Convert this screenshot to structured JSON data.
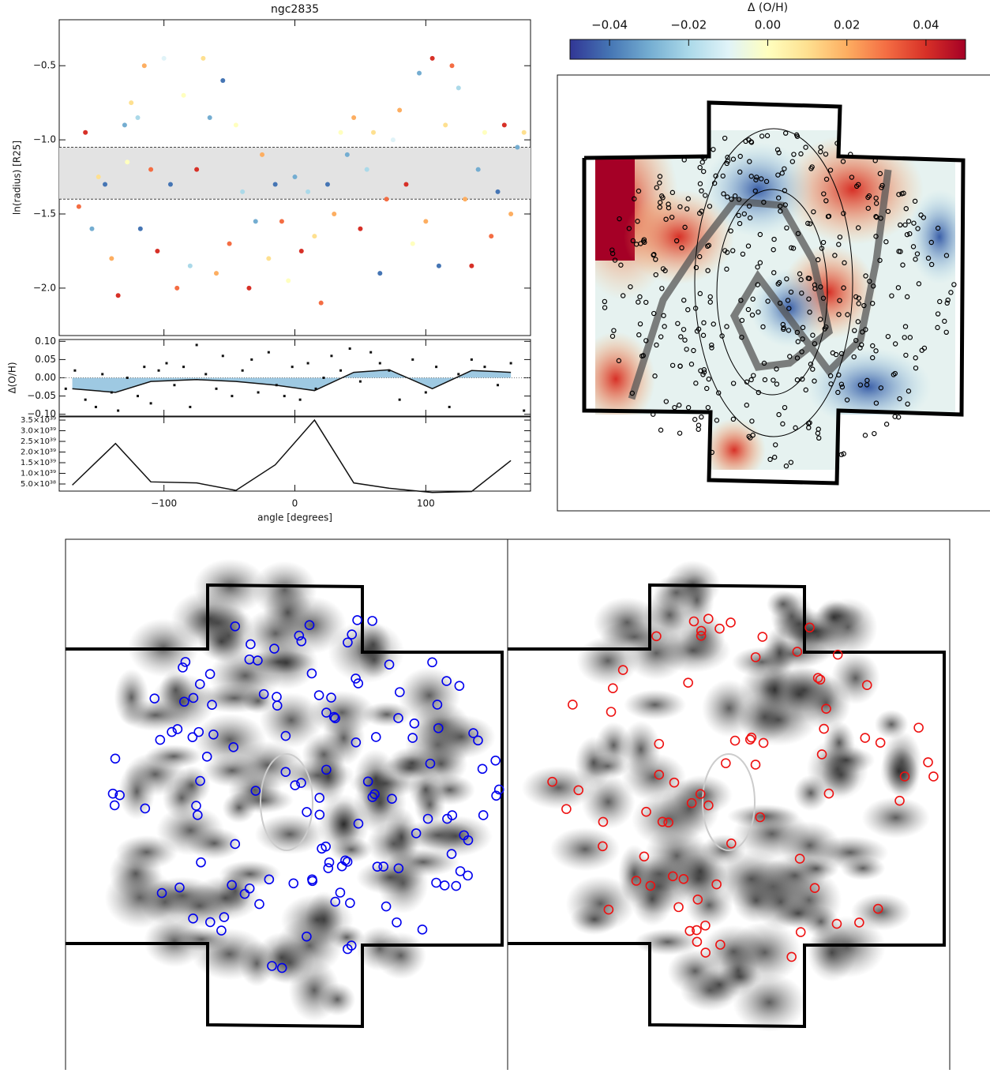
{
  "chart_data": [
    {
      "type": "scatter",
      "title": "ngc2835",
      "y_label": "ln(radius) [R25]",
      "xlim": [
        -180,
        180
      ],
      "ylim": [
        -2.32,
        -0.19
      ],
      "yticks": [
        {
          "value": -2.0,
          "label": "−2.0"
        },
        {
          "value": -1.5,
          "label": "−1.5"
        },
        {
          "value": -1.0,
          "label": "−1.0"
        },
        {
          "value": -0.5,
          "label": "−0.5"
        }
      ],
      "band": [
        -1.4,
        -1.05
      ],
      "band_color": "#e3e3e3",
      "x": [
        -165,
        -160,
        -155,
        -150,
        -145,
        -140,
        -135,
        -130,
        -128,
        -125,
        -120,
        -118,
        -115,
        -110,
        -105,
        -100,
        -95,
        -90,
        -85,
        -80,
        -75,
        -70,
        -65,
        -60,
        -55,
        -50,
        -45,
        -40,
        -35,
        -30,
        -25,
        -20,
        -15,
        -10,
        -5,
        0,
        5,
        10,
        15,
        20,
        25,
        30,
        35,
        40,
        45,
        50,
        55,
        60,
        65,
        70,
        75,
        80,
        85,
        90,
        95,
        100,
        105,
        110,
        115,
        120,
        125,
        130,
        135,
        140,
        145,
        150,
        155,
        160,
        165,
        170,
        175
      ],
      "y": [
        -1.45,
        -0.95,
        -1.6,
        -1.25,
        -1.3,
        -1.8,
        -2.05,
        -0.9,
        -1.15,
        -0.75,
        -0.85,
        -1.6,
        -0.5,
        -1.2,
        -1.75,
        -0.45,
        -1.3,
        -2.0,
        -0.7,
        -1.85,
        -1.2,
        -0.45,
        -0.85,
        -1.9,
        -0.6,
        -1.7,
        -0.9,
        -1.35,
        -2.0,
        -1.55,
        -1.1,
        -1.8,
        -1.3,
        -1.55,
        -1.95,
        -1.25,
        -1.75,
        -1.35,
        -1.65,
        -2.1,
        -1.3,
        -1.5,
        -0.95,
        -1.1,
        -0.85,
        -1.6,
        -1.2,
        -0.95,
        -1.9,
        -1.4,
        -1.0,
        -0.8,
        -1.3,
        -1.7,
        -0.55,
        -1.55,
        -0.45,
        -1.85,
        -0.9,
        -0.5,
        -0.65,
        -1.4,
        -1.85,
        -1.2,
        -0.95,
        -1.65,
        -1.35,
        -0.9,
        -1.5,
        -1.05,
        -0.95
      ],
      "z": [
        0.03,
        0.04,
        -0.03,
        0.01,
        -0.04,
        0.02,
        0.04,
        -0.03,
        0.0,
        0.01,
        -0.02,
        -0.04,
        0.02,
        0.03,
        0.04,
        -0.01,
        -0.04,
        0.03,
        0.0,
        -0.02,
        0.04,
        0.01,
        -0.03,
        0.02,
        -0.04,
        0.03,
        0.0,
        -0.02,
        0.04,
        -0.03,
        0.02,
        0.01,
        -0.04,
        0.03,
        0.0,
        -0.03,
        0.04,
        -0.02,
        0.01,
        0.03,
        -0.04,
        0.02,
        0.0,
        -0.03,
        0.02,
        0.04,
        -0.02,
        0.01,
        -0.04,
        0.03,
        -0.01,
        0.02,
        0.04,
        0.0,
        -0.03,
        0.02,
        0.04,
        -0.04,
        0.01,
        0.03,
        -0.02,
        0.02,
        0.04,
        -0.03,
        0.0,
        0.03,
        -0.04,
        0.04,
        0.02,
        -0.03,
        0.01
      ]
    },
    {
      "type": "scatter",
      "y_label": "Δ(O/H)",
      "xlim": [
        -180,
        180
      ],
      "ylim": [
        -0.105,
        0.105
      ],
      "yticks": [
        {
          "value": -0.1,
          "label": "−0.10"
        },
        {
          "value": -0.05,
          "label": "−0.05"
        },
        {
          "value": 0,
          "label": "0.00"
        },
        {
          "value": 0.05,
          "label": "0.05"
        },
        {
          "value": 0.1,
          "label": "0.10"
        }
      ],
      "color": "#111111",
      "fill_color": "#9ec9e2",
      "x": [
        -175,
        -168,
        -160,
        -152,
        -147,
        -140,
        -135,
        -128,
        -120,
        -115,
        -110,
        -104,
        -98,
        -92,
        -85,
        -80,
        -75,
        -68,
        -60,
        -55,
        -48,
        -40,
        -33,
        -28,
        -20,
        -14,
        -8,
        -2,
        4,
        10,
        16,
        22,
        28,
        35,
        42,
        50,
        58,
        65,
        72,
        80,
        90,
        100,
        108,
        118,
        125,
        135,
        145,
        155,
        165,
        175
      ],
      "y": [
        -0.03,
        0.02,
        -0.06,
        -0.08,
        0.01,
        -0.04,
        -0.09,
        0.0,
        -0.05,
        0.03,
        -0.07,
        0.02,
        0.04,
        -0.02,
        0.03,
        -0.08,
        0.09,
        0.01,
        -0.03,
        0.06,
        -0.05,
        0.02,
        0.05,
        -0.04,
        0.07,
        -0.02,
        -0.05,
        0.03,
        -0.06,
        0.04,
        -0.03,
        0.0,
        0.06,
        0.02,
        0.08,
        -0.01,
        0.07,
        0.04,
        0.02,
        -0.06,
        0.05,
        -0.04,
        0.03,
        -0.08,
        0.01,
        0.05,
        0.03,
        -0.02,
        0.04,
        -0.09
      ],
      "trend_x": [
        -170,
        -137,
        -110,
        -75,
        -45,
        -15,
        15,
        45,
        72,
        105,
        135,
        165
      ],
      "trend_y": [
        -0.03,
        -0.04,
        -0.01,
        -0.005,
        -0.01,
        -0.02,
        -0.035,
        0.015,
        0.022,
        -0.03,
        0.02,
        0.015
      ]
    },
    {
      "type": "line",
      "x_label": "angle [degrees]",
      "xlim": [
        -180,
        180
      ],
      "ylim": [
        1.67e+38,
        3.65e+39
      ],
      "xticks": [
        {
          "value": -100,
          "label": "−100"
        },
        0,
        100
      ],
      "yticks": [
        {
          "value": 5e+38,
          "label": "5.0×10³⁸"
        },
        {
          "value": 1e+39,
          "label": "1.0×10³⁹"
        },
        {
          "value": 1.5e+39,
          "label": "1.5×10³⁹"
        },
        {
          "value": 2e+39,
          "label": "2.0×10³⁹"
        },
        {
          "value": 2.5e+39,
          "label": "2.5×10³⁹"
        },
        {
          "value": 3e+39,
          "label": "3.0×10³⁹"
        },
        {
          "value": 3.5e+39,
          "label": "3.5×10³⁹"
        }
      ],
      "color": "#111111",
      "x": [
        -170,
        -137,
        -110,
        -75,
        -45,
        -15,
        15,
        45,
        72,
        105,
        135,
        165
      ],
      "y": [
        4.5e+38,
        2.4e+39,
        6e+38,
        5.5e+38,
        2e+38,
        1.4e+39,
        3.5e+39,
        5.5e+38,
        3e+38,
        1e+38,
        1.5e+38,
        1.6e+39
      ]
    },
    {
      "type": "colorbar",
      "title": "Δ (O/H)",
      "xlim": [
        -0.05,
        0.05
      ],
      "xticks": [
        {
          "value": -0.04,
          "label": "−0.04"
        },
        {
          "value": -0.02,
          "label": "−0.02"
        },
        {
          "value": 0,
          "label": "0.00"
        },
        {
          "value": 0.02,
          "label": "0.02"
        },
        {
          "value": 0.04,
          "label": "0.04"
        }
      ],
      "colors": [
        "#313695",
        "#4575b4",
        "#74add1",
        "#abd9e9",
        "#e0f3f8",
        "#ffffbf",
        "#fee090",
        "#fdae61",
        "#f46d43",
        "#d73027",
        "#a50026"
      ]
    }
  ]
}
